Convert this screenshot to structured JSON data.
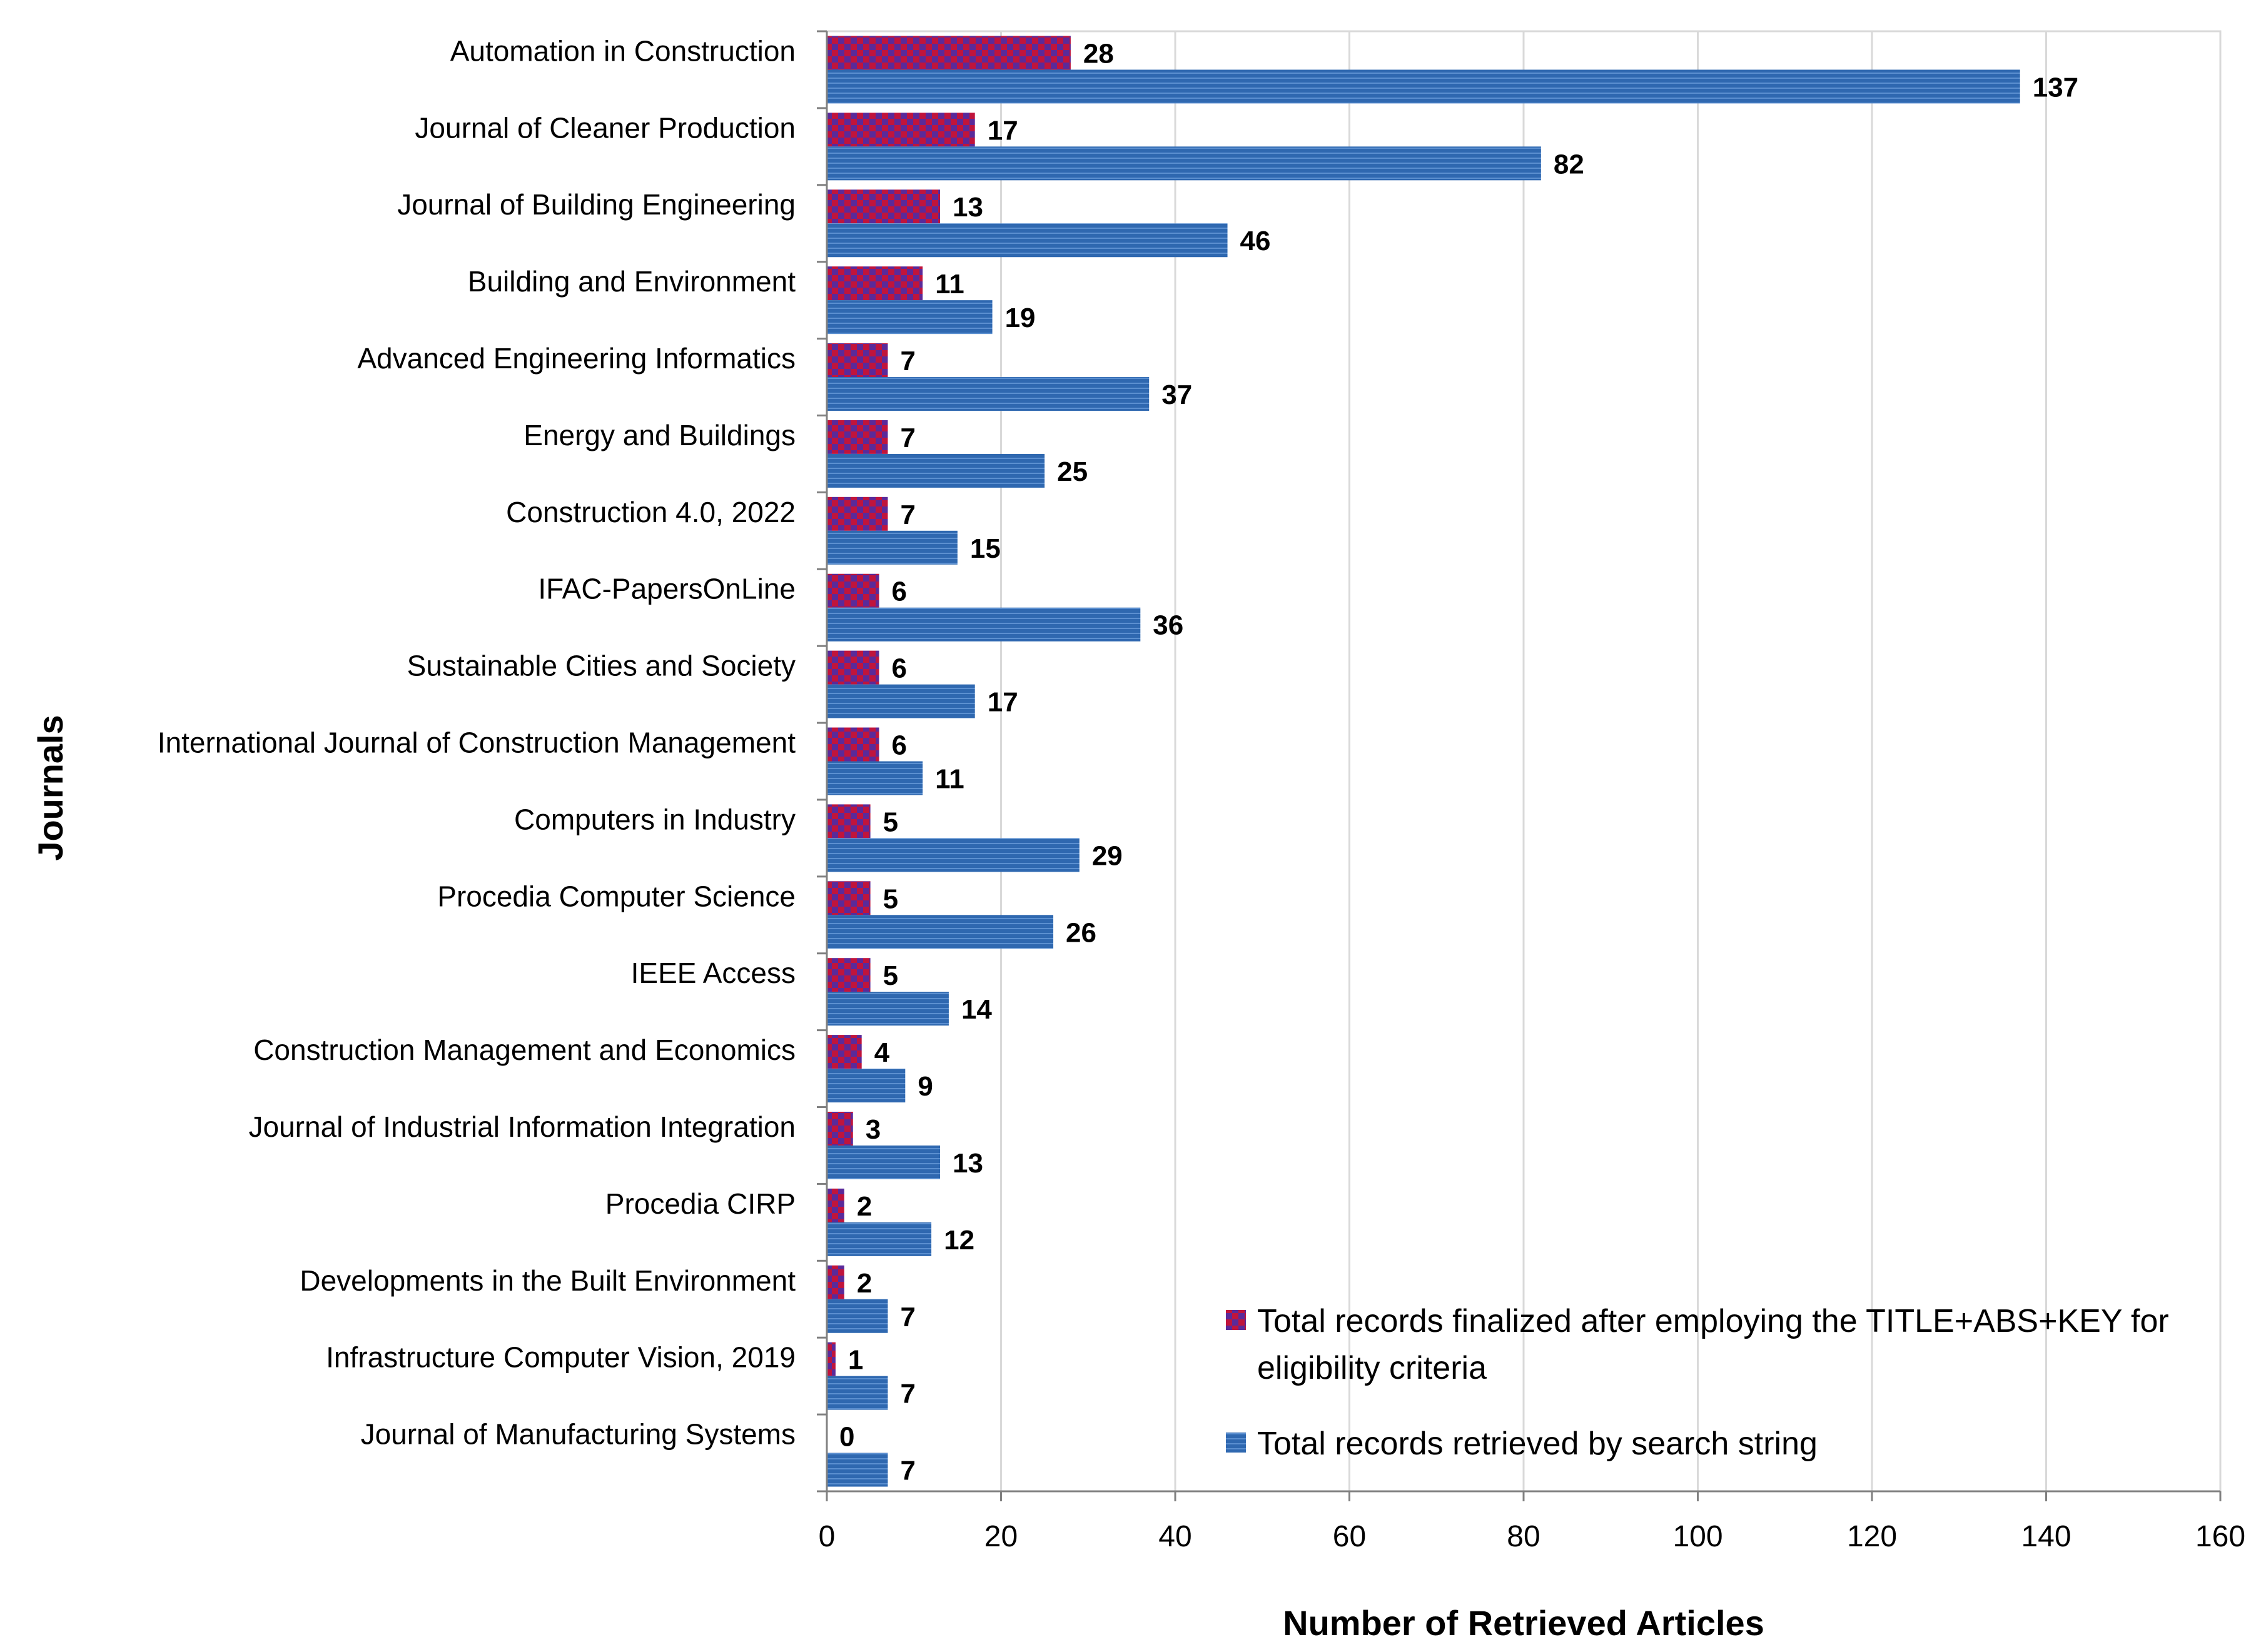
{
  "colors": {
    "finalized_a": "#c0143c",
    "finalized_b": "#5a2a9a",
    "retrieved": "#2f68b0",
    "retrieved_line": "#5b8fd0",
    "grid": "#d9d9d9",
    "axis": "#808080"
  },
  "chart_data": {
    "type": "bar",
    "orientation": "horizontal",
    "xlabel": "Number of Retrieved Articles",
    "ylabel": "Journals",
    "xlim": [
      0,
      160
    ],
    "xticks": [
      0,
      20,
      40,
      60,
      80,
      100,
      120,
      140,
      160
    ],
    "grid": true,
    "legend_position": "bottom-right",
    "categories": [
      "Automation in Construction",
      "Journal of Cleaner Production",
      "Journal of Building Engineering",
      "Building and Environment",
      "Advanced Engineering Informatics",
      "Energy and Buildings",
      "Construction 4.0, 2022",
      "IFAC-PapersOnLine",
      "Sustainable Cities and Society",
      "International Journal of Construction Management",
      "Computers in Industry",
      "Procedia Computer Science",
      "IEEE Access",
      "Construction Management and Economics",
      "Journal of Industrial Information Integration",
      "Procedia CIRP",
      "Developments in the Built Environment",
      "Infrastructure Computer Vision, 2019",
      "Journal of Manufacturing Systems"
    ],
    "series": [
      {
        "name": "Total records finalized after employing the TITLE+ABS+KEY for eligibility criteria",
        "legend_lines": [
          "Total records finalized after employing the TITLE+ABS+KEY for",
          "eligibility criteria"
        ],
        "values": [
          28,
          17,
          13,
          11,
          7,
          7,
          7,
          6,
          6,
          6,
          5,
          5,
          5,
          4,
          3,
          2,
          2,
          1,
          0
        ]
      },
      {
        "name": "Total records retrieved by search string",
        "legend_lines": [
          "Total records retrieved by search string"
        ],
        "values": [
          137,
          82,
          46,
          19,
          37,
          25,
          15,
          36,
          17,
          11,
          29,
          26,
          14,
          9,
          13,
          12,
          7,
          7,
          7
        ]
      }
    ]
  }
}
